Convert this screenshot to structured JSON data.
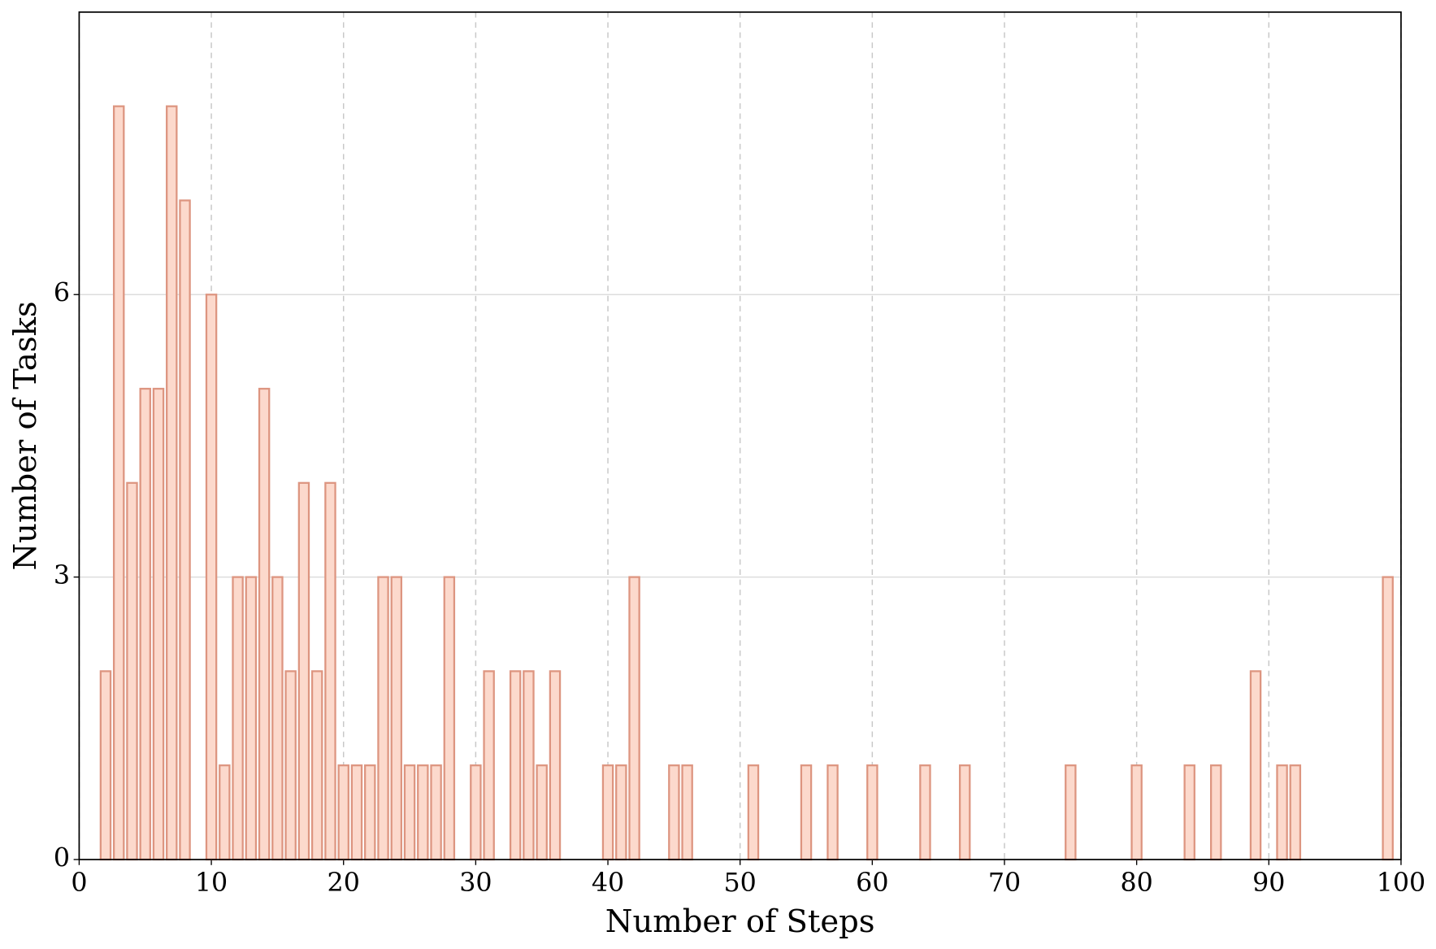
{
  "chart_data": {
    "type": "bar",
    "x_label": "Number of Steps",
    "y_label": "Number of Tasks",
    "x": [
      2,
      3,
      4,
      5,
      6,
      7,
      8,
      10,
      11,
      12,
      13,
      14,
      15,
      16,
      17,
      18,
      19,
      20,
      21,
      22,
      23,
      24,
      25,
      26,
      27,
      28,
      30,
      31,
      33,
      34,
      35,
      36,
      40,
      41,
      42,
      45,
      46,
      51,
      55,
      57,
      60,
      64,
      67,
      75,
      80,
      84,
      86,
      89,
      91,
      92,
      99
    ],
    "values": [
      2,
      8,
      4,
      5,
      5,
      8,
      7,
      6,
      1,
      3,
      3,
      5,
      3,
      2,
      4,
      2,
      4,
      1,
      1,
      1,
      3,
      3,
      1,
      1,
      1,
      3,
      1,
      2,
      2,
      2,
      1,
      2,
      1,
      1,
      3,
      1,
      1,
      1,
      1,
      1,
      1,
      1,
      1,
      1,
      1,
      1,
      1,
      2,
      1,
      1,
      3
    ],
    "color": "#fcd9cc",
    "edge_color": "#dd9580",
    "xlim": [
      0,
      100
    ],
    "ylim": [
      0,
      9
    ],
    "xticks": [
      0,
      10,
      20,
      30,
      40,
      50,
      60,
      70,
      80,
      90,
      100
    ],
    "yticks": [
      0,
      3,
      6
    ],
    "grid": true
  }
}
